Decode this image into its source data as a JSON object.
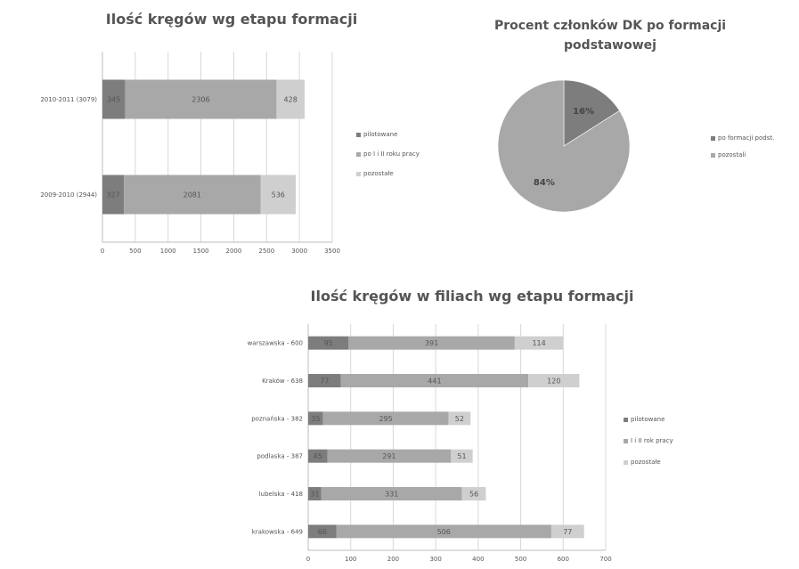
{
  "colors": {
    "dark": "#7d7d7d",
    "mid": "#a8a8a8",
    "light": "#cfcfcf",
    "grid": "#d8d8d8",
    "axis": "#bdbdbd"
  },
  "chart_data": [
    {
      "type": "bar",
      "orientation": "horizontal",
      "stacked": true,
      "title": "Ilość kręgów wg etapu formacji",
      "categories": [
        "2010-2011 (3079)",
        "2009-2010 (2944)"
      ],
      "series": [
        {
          "name": "pilotowane",
          "values": [
            345,
            327
          ],
          "labels": [
            "345",
            "327"
          ]
        },
        {
          "name": "po I i II roku pracy",
          "values": [
            2306,
            2081
          ],
          "labels": [
            "2306",
            "2081"
          ]
        },
        {
          "name": "pozostałe",
          "values": [
            428,
            536
          ],
          "labels": [
            "428",
            "536"
          ]
        }
      ],
      "xlim": [
        0,
        3500
      ],
      "xticks": [
        "0",
        "500",
        "1000",
        "1500",
        "2000",
        "2500",
        "3000",
        "3500"
      ],
      "grid": true,
      "legend": "right"
    },
    {
      "type": "pie",
      "title": "Procent członków DK po formacji podstawowej",
      "series": [
        {
          "name": "po formacji podst.",
          "value": 16,
          "label": "16%"
        },
        {
          "name": "pozostali",
          "value": 84,
          "label": "84%"
        }
      ],
      "legend": "right"
    },
    {
      "type": "bar",
      "orientation": "horizontal",
      "stacked": true,
      "title": "Ilość kręgów w filiach wg etapu formacji",
      "categories": [
        "warszawska - 600",
        "Kraków - 638",
        "poznańska - 382",
        "podlaska - 387",
        "lubelska - 418",
        "krakowska - 649"
      ],
      "series": [
        {
          "name": "pilotowane",
          "values": [
            95,
            77,
            35,
            45,
            31,
            66
          ],
          "labels": [
            "95",
            "77",
            "35",
            "45",
            "31",
            "66"
          ]
        },
        {
          "name": "I i II rok pracy",
          "values": [
            391,
            441,
            295,
            291,
            331,
            506
          ],
          "labels": [
            "391",
            "441",
            "295",
            "291",
            "331",
            "506"
          ]
        },
        {
          "name": "pozostałe",
          "values": [
            114,
            120,
            52,
            51,
            56,
            77
          ],
          "labels": [
            "114",
            "120",
            "52",
            "51",
            "56",
            "77"
          ]
        }
      ],
      "xlim": [
        0,
        700
      ],
      "xticks": [
        "0",
        "100",
        "200",
        "300",
        "400",
        "500",
        "600",
        "700"
      ],
      "grid": true,
      "legend": "right"
    }
  ]
}
